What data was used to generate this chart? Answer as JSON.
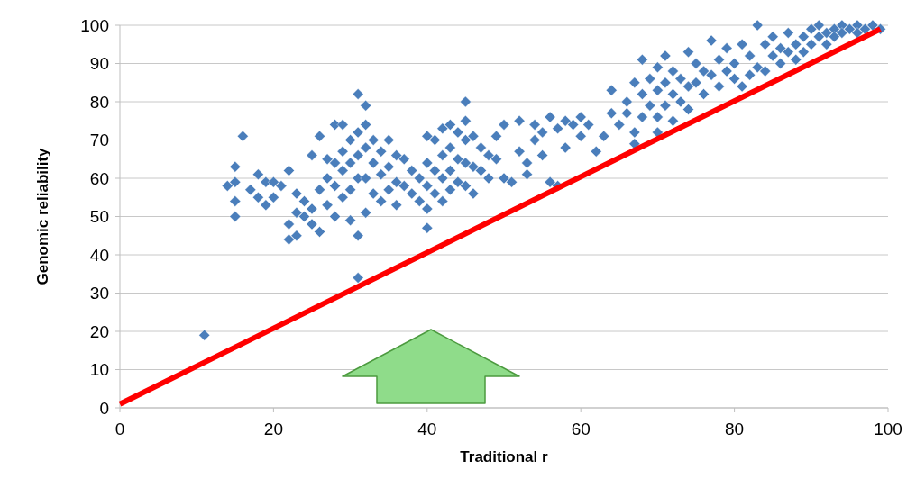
{
  "chart_data": {
    "type": "scatter",
    "ylabel": "Genomic reliability",
    "xlabel": "Traditional r",
    "xlim": [
      0,
      100
    ],
    "xticks": [
      0,
      20,
      40,
      60,
      80,
      100
    ],
    "ylim": [
      0,
      100
    ],
    "yticks": [
      0,
      10,
      20,
      30,
      40,
      50,
      60,
      70,
      80,
      90,
      100
    ],
    "grid": "y",
    "marker": "diamond",
    "series": [
      {
        "color": "#4a7ebb",
        "x": [
          11,
          14,
          15,
          15,
          15,
          15,
          16,
          17,
          18,
          18,
          19,
          19,
          20,
          20,
          21,
          22,
          22,
          22,
          23,
          23,
          23,
          24,
          24,
          25,
          25,
          25,
          26,
          26,
          26,
          27,
          27,
          27,
          28,
          28,
          28,
          28,
          29,
          29,
          29,
          29,
          30,
          30,
          30,
          30,
          31,
          31,
          31,
          31,
          31,
          31,
          32,
          32,
          32,
          32,
          32,
          33,
          33,
          33,
          34,
          34,
          34,
          35,
          35,
          35,
          36,
          36,
          36,
          37,
          37,
          38,
          38,
          39,
          39,
          40,
          40,
          40,
          40,
          40,
          41,
          41,
          41,
          42,
          42,
          42,
          42,
          43,
          43,
          43,
          43,
          44,
          44,
          44,
          45,
          45,
          45,
          45,
          45,
          46,
          46,
          46,
          47,
          47,
          48,
          48,
          49,
          49,
          50,
          50,
          51,
          52,
          52,
          53,
          53,
          54,
          54,
          55,
          55,
          56,
          56,
          57,
          57,
          58,
          58,
          59,
          60,
          60,
          61,
          62,
          63,
          64,
          64,
          65,
          66,
          66,
          67,
          67,
          67,
          68,
          68,
          68,
          69,
          69,
          70,
          70,
          70,
          70,
          71,
          71,
          71,
          72,
          72,
          72,
          73,
          73,
          74,
          74,
          74,
          75,
          75,
          76,
          76,
          77,
          77,
          78,
          78,
          79,
          79,
          80,
          80,
          81,
          81,
          82,
          82,
          83,
          83,
          84,
          84,
          85,
          85,
          86,
          86,
          87,
          87,
          88,
          88,
          89,
          89,
          90,
          90,
          91,
          91,
          92,
          92,
          93,
          93,
          94,
          94,
          95,
          96,
          96,
          97,
          98,
          99
        ],
        "values": [
          19,
          58,
          63,
          59,
          54,
          50,
          71,
          57,
          61,
          55,
          59,
          53,
          59,
          55,
          58,
          44,
          48,
          62,
          45,
          51,
          56,
          54,
          50,
          66,
          52,
          48,
          71,
          57,
          46,
          60,
          65,
          53,
          74,
          64,
          58,
          50,
          74,
          67,
          62,
          55,
          70,
          64,
          57,
          49,
          82,
          72,
          66,
          60,
          45,
          34,
          79,
          74,
          68,
          60,
          51,
          70,
          64,
          56,
          67,
          61,
          54,
          70,
          63,
          57,
          66,
          59,
          53,
          65,
          58,
          62,
          56,
          60,
          54,
          71,
          64,
          58,
          52,
          47,
          70,
          62,
          56,
          73,
          66,
          60,
          54,
          74,
          68,
          62,
          57,
          72,
          65,
          59,
          80,
          75,
          70,
          64,
          58,
          71,
          63,
          56,
          68,
          62,
          66,
          60,
          71,
          65,
          74,
          60,
          59,
          75,
          67,
          64,
          61,
          74,
          70,
          72,
          66,
          76,
          59,
          73,
          58,
          75,
          68,
          74,
          76,
          71,
          74,
          67,
          71,
          77,
          83,
          74,
          80,
          77,
          85,
          72,
          69,
          91,
          82,
          76,
          86,
          79,
          89,
          83,
          76,
          72,
          92,
          85,
          79,
          88,
          82,
          75,
          86,
          80,
          93,
          84,
          78,
          90,
          85,
          88,
          82,
          96,
          87,
          84,
          91,
          94,
          88,
          86,
          90,
          95,
          84,
          92,
          87,
          100,
          89,
          95,
          88,
          92,
          97,
          90,
          94,
          93,
          98,
          95,
          91,
          97,
          93,
          99,
          95,
          97,
          100,
          98,
          95,
          99,
          97,
          100,
          98,
          99,
          100,
          98,
          99,
          100,
          99
        ]
      },
      {
        "type": "line",
        "marker": "none",
        "color": "#ff0000",
        "x": [
          0,
          99
        ],
        "values": [
          1,
          99
        ]
      }
    ]
  }
}
